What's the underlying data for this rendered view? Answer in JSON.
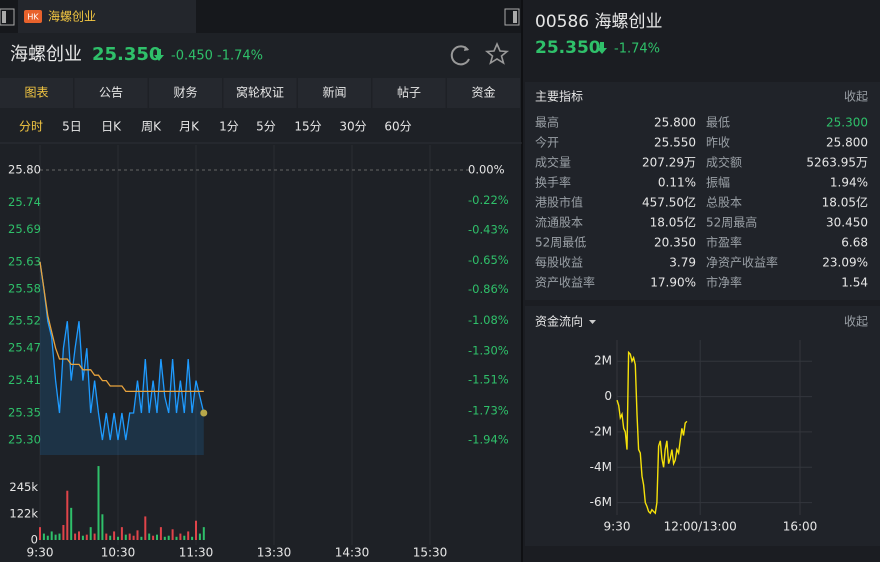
{
  "tab": {
    "badge": "HK",
    "title": "海螺创业"
  },
  "quote": {
    "name": "海螺创业",
    "price": "25.350",
    "change": "-0.450",
    "change_pct": "-1.74%"
  },
  "tabs": [
    "图表",
    "公告",
    "财务",
    "窝轮权证",
    "新闻",
    "帖子",
    "资金"
  ],
  "periods": [
    "分时",
    "5日",
    "日K",
    "周K",
    "月K",
    "1分",
    "5分",
    "15分",
    "30分",
    "60分"
  ],
  "side": {
    "title": "00586 海螺创业",
    "price": "25.350",
    "change_pct": "-1.74%"
  },
  "indicators": {
    "title": "主要指标",
    "toggle": "收起",
    "items": [
      {
        "label": "最高",
        "value": "25.800"
      },
      {
        "label": "最低",
        "value": "25.300",
        "color": "#2fc06a"
      },
      {
        "label": "今开",
        "value": "25.550"
      },
      {
        "label": "昨收",
        "value": "25.800"
      },
      {
        "label": "成交量",
        "value": "207.29万"
      },
      {
        "label": "成交额",
        "value": "5263.95万"
      },
      {
        "label": "换手率",
        "value": "0.11%"
      },
      {
        "label": "振幅",
        "value": "1.94%"
      },
      {
        "label": "港股市值",
        "value": "457.50亿"
      },
      {
        "label": "总股本",
        "value": "18.05亿"
      },
      {
        "label": "流通股本",
        "value": "18.05亿"
      },
      {
        "label": "52周最高",
        "value": "30.450"
      },
      {
        "label": "52周最低",
        "value": "20.350"
      },
      {
        "label": "市盈率",
        "value": "6.68"
      },
      {
        "label": "每股收益",
        "value": "3.79"
      },
      {
        "label": "净资产收益率",
        "value": "23.09%"
      },
      {
        "label": "资产收益率",
        "value": "17.90%"
      },
      {
        "label": "市净率",
        "value": "1.54"
      }
    ]
  },
  "flow_section": {
    "title": "资金流向",
    "toggle": "收起"
  },
  "chart_data": [
    {
      "type": "line",
      "xlim": [
        "9:30",
        "16:00"
      ],
      "xticks": [
        "9:30",
        "10:30",
        "11:30",
        "13:30",
        "14:30",
        "15:30"
      ],
      "x": [
        "9:30",
        "9:33",
        "9:36",
        "9:39",
        "9:42",
        "9:45",
        "9:48",
        "9:51",
        "9:54",
        "9:57",
        "10:00",
        "10:03",
        "10:06",
        "10:09",
        "10:12",
        "10:15",
        "10:18",
        "10:21",
        "10:24",
        "10:27",
        "10:30",
        "10:33",
        "10:36",
        "10:39",
        "10:42",
        "10:45",
        "10:48",
        "10:51",
        "10:54",
        "10:57",
        "11:00",
        "11:03",
        "11:06",
        "11:09",
        "11:12",
        "11:15",
        "11:18",
        "11:21",
        "11:24",
        "11:27",
        "11:30",
        "11:33",
        "11:36"
      ],
      "series": [
        {
          "color": "#1e9bff",
          "values": [
            25.63,
            25.58,
            25.52,
            25.49,
            25.41,
            25.35,
            25.47,
            25.52,
            25.41,
            25.47,
            25.52,
            25.41,
            25.47,
            25.35,
            25.41,
            25.35,
            25.3,
            25.35,
            25.3,
            25.35,
            25.3,
            25.35,
            25.3,
            25.35,
            25.35,
            25.41,
            25.35,
            25.45,
            25.35,
            25.41,
            25.35,
            25.45,
            25.38,
            25.35,
            25.45,
            25.35,
            25.41,
            25.35,
            25.45,
            25.35,
            25.41,
            25.38,
            25.35
          ]
        },
        {
          "color": "#e8a33d",
          "values": [
            25.63,
            25.58,
            25.53,
            25.5,
            25.47,
            25.45,
            25.45,
            25.45,
            25.44,
            25.44,
            25.44,
            25.43,
            25.43,
            25.43,
            25.42,
            25.42,
            25.41,
            25.41,
            25.4,
            25.4,
            25.4,
            25.4,
            25.39,
            25.39,
            25.39,
            25.39,
            25.39,
            25.39,
            25.39,
            25.39,
            25.39,
            25.39,
            25.39,
            25.39,
            25.39,
            25.39,
            25.39,
            25.39,
            25.39,
            25.39,
            25.39,
            25.39,
            25.39
          ]
        }
      ],
      "ylim": [
        25.3,
        25.8
      ],
      "yticks": [
        {
          "value": 25.8,
          "label": "25.80"
        },
        {
          "value": 25.74,
          "label": "25.74"
        },
        {
          "value": 25.69,
          "label": "25.69"
        },
        {
          "value": 25.63,
          "label": "25.63"
        },
        {
          "value": 25.58,
          "label": "25.58"
        },
        {
          "value": 25.52,
          "label": "25.52"
        },
        {
          "value": 25.47,
          "label": "25.47"
        },
        {
          "value": 25.41,
          "label": "25.41"
        },
        {
          "value": 25.35,
          "label": "25.35"
        },
        {
          "value": 25.3,
          "label": "25.30"
        }
      ],
      "y2lim": [
        -1.94,
        0
      ],
      "y2ticks": [
        {
          "value": 0,
          "label": "0.00%"
        },
        {
          "value": -0.22,
          "label": "-0.22%"
        },
        {
          "value": -0.43,
          "label": "-0.43%"
        },
        {
          "value": -0.65,
          "label": "-0.65%"
        },
        {
          "value": -0.86,
          "label": "-0.86%"
        },
        {
          "value": -1.08,
          "label": "-1.08%"
        },
        {
          "value": -1.3,
          "label": "-1.30%"
        },
        {
          "value": -1.51,
          "label": "-1.51%"
        },
        {
          "value": -1.73,
          "label": "-1.73%"
        },
        {
          "value": -1.94,
          "label": "-1.94%"
        }
      ],
      "reference": 25.8,
      "up_color": "#e0444a",
      "down_color": "#2fc06a"
    },
    {
      "type": "bar",
      "xlim": [
        "9:30",
        "16:00"
      ],
      "x": [
        "9:30",
        "9:33",
        "9:36",
        "9:39",
        "9:42",
        "9:45",
        "9:48",
        "9:51",
        "9:54",
        "9:57",
        "10:00",
        "10:03",
        "10:06",
        "10:09",
        "10:12",
        "10:15",
        "10:18",
        "10:21",
        "10:24",
        "10:27",
        "10:30",
        "10:33",
        "10:36",
        "10:39",
        "10:42",
        "10:45",
        "10:48",
        "10:51",
        "10:54",
        "10:57",
        "11:00",
        "11:03",
        "11:06",
        "11:09",
        "11:12",
        "11:15",
        "11:18",
        "11:21",
        "11:24",
        "11:27",
        "11:30",
        "11:33",
        "11:36"
      ],
      "values": [
        60000,
        30000,
        20000,
        40000,
        25000,
        30000,
        70000,
        230000,
        150000,
        30000,
        40000,
        20000,
        25000,
        60000,
        30000,
        345000,
        120000,
        30000,
        20000,
        40000,
        15000,
        60000,
        25000,
        30000,
        20000,
        45000,
        15000,
        110000,
        30000,
        20000,
        25000,
        60000,
        15000,
        20000,
        50000,
        15000,
        30000,
        20000,
        40000,
        15000,
        90000,
        30000,
        60000
      ],
      "ylim": [
        0,
        350000
      ],
      "yticks": [
        {
          "value": 245000,
          "label": "245k"
        },
        {
          "value": 122000,
          "label": "122k"
        },
        0
      ]
    },
    {
      "type": "line",
      "xlim": [
        "9:30",
        "16:00"
      ],
      "xticks": [
        "9:30",
        "12:00/13:00",
        "16:00"
      ],
      "x": [
        "9:30",
        "9:33",
        "9:36",
        "9:39",
        "9:42",
        "9:45",
        "9:48",
        "9:51",
        "9:54",
        "9:57",
        "10:00",
        "10:03",
        "10:06",
        "10:09",
        "10:12",
        "10:15",
        "10:18",
        "10:21",
        "10:24",
        "10:27",
        "10:30",
        "10:33",
        "10:36",
        "10:39",
        "10:42",
        "10:45",
        "10:48",
        "10:51",
        "10:54",
        "10:57",
        "11:00",
        "11:03",
        "11:06",
        "11:09",
        "11:12",
        "11:15",
        "11:18",
        "11:21",
        "11:24",
        "11:27",
        "11:30",
        "11:33",
        "11:36"
      ],
      "values": [
        -0.2,
        -0.5,
        -1.2,
        -1.0,
        -1.8,
        -2.0,
        -3.0,
        2.5,
        2.4,
        2.0,
        2.2,
        1.8,
        -1.0,
        -3.0,
        -3.2,
        -4.5,
        -5.0,
        -6.0,
        -6.2,
        -6.5,
        -6.6,
        -6.4,
        -6.5,
        -6.6,
        -6.0,
        -2.8,
        -2.5,
        -3.5,
        -4.0,
        -3.0,
        -2.5,
        -3.8,
        -3.5,
        -3.0,
        -3.8,
        -3.6,
        -3.0,
        -3.2,
        -2.5,
        -1.8,
        -2.2,
        -1.5,
        -1.4
      ],
      "color": "#f5e10a",
      "ylim": [
        -6.7,
        3.2
      ],
      "yticks": [
        {
          "value": 2,
          "label": "2M"
        },
        0,
        {
          "value": -2,
          "label": "-2M"
        },
        {
          "value": -4,
          "label": "-4M"
        },
        {
          "value": -6,
          "label": "-6M"
        }
      ]
    }
  ]
}
